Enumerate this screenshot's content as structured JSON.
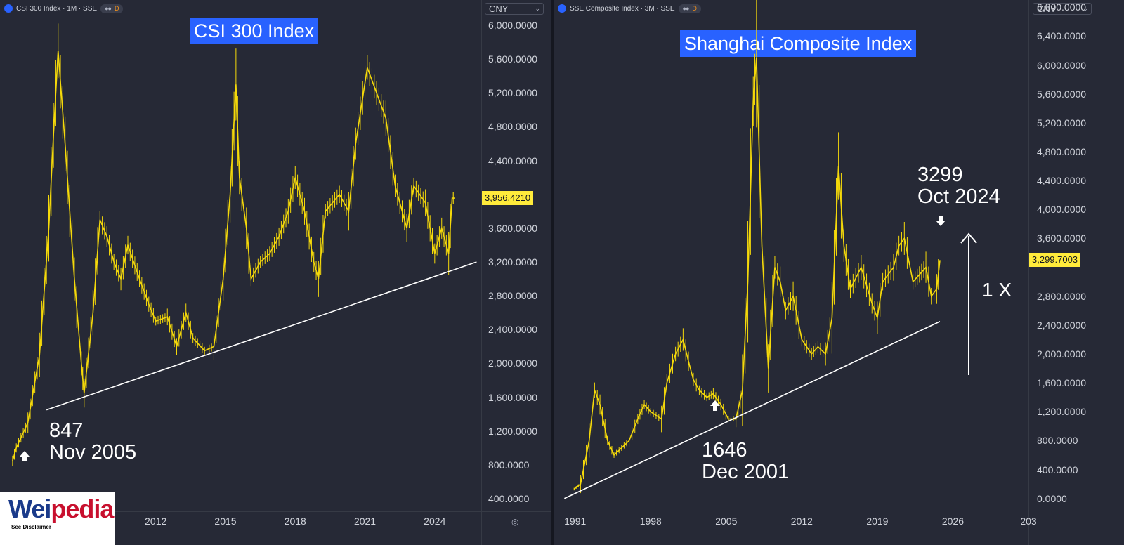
{
  "left": {
    "header": {
      "symbol": "CSI 300 Index · 1M · SSE",
      "flag": "D"
    },
    "currency": "CNY",
    "title": "CSI 300 Index",
    "last_price_label": "3,956.4210",
    "y_ticks": [
      "6,000.0000",
      "5,600.0000",
      "5,200.0000",
      "4,800.0000",
      "4,400.0000",
      "3,600.0000",
      "3,200.0000",
      "2,800.0000",
      "2,400.0000",
      "2,000.0000",
      "1,600.0000",
      "1,200.0000",
      "800.0000",
      "400.0000"
    ],
    "x_ticks": [
      "2012",
      "2015",
      "2018",
      "2021",
      "2024"
    ],
    "annotation": {
      "value": "847",
      "date": "Nov 2005"
    },
    "settings_icon": "gear-icon",
    "colors": {
      "candle": "#f5d90a",
      "trendline": "#ffffff",
      "title_bg": "#2962ff",
      "price_tag": "#ffeb3b"
    }
  },
  "right": {
    "header": {
      "symbol": "SSE Composite Index · 3M · SSE",
      "flag": "D"
    },
    "currency": "CNY",
    "title": "Shanghai Composite Index",
    "last_price_label": "3,299.7003",
    "y_ticks": [
      "6,800.0000",
      "6,400.0000",
      "6,000.0000",
      "5,600.0000",
      "5,200.0000",
      "4,800.0000",
      "4,400.0000",
      "4,000.0000",
      "3,600.0000",
      "2,800.0000",
      "2,400.0000",
      "2,000.0000",
      "1,600.0000",
      "1,200.0000",
      "800.0000",
      "400.0000",
      "0.0000"
    ],
    "x_ticks": [
      "1991",
      "1998",
      "2005",
      "2012",
      "2019",
      "2026",
      "203"
    ],
    "annotation_low": {
      "value": "1646",
      "date": "Dec 2001"
    },
    "annotation_high": {
      "value": "3299",
      "date": "Oct 2024"
    },
    "arrow_label": "1 X"
  },
  "logo": {
    "word_a": "Wei",
    "word_b": "pedia",
    "sub": "See Disclaimer"
  },
  "chart_data": [
    {
      "type": "line",
      "title": "CSI 300 Index",
      "xlabel": "",
      "ylabel": "",
      "ylim": [
        250,
        6300
      ],
      "xlim": [
        2005.3,
        2026.0
      ],
      "series": [
        {
          "x": [
            2005.84,
            2006.0,
            2006.5,
            2007.0,
            2007.4,
            2007.6,
            2007.8,
            2008.1,
            2008.5,
            2008.8,
            2008.92,
            2009.3,
            2009.6,
            2009.9,
            2010.2,
            2010.5,
            2010.8,
            2011.3,
            2011.7,
            2012.0,
            2012.5,
            2012.9,
            2013.3,
            2013.6,
            2014.1,
            2014.5,
            2014.9,
            2015.2,
            2015.45,
            2015.6,
            2015.9,
            2016.1,
            2016.5,
            2016.9,
            2017.3,
            2017.7,
            2018.0,
            2018.4,
            2018.8,
            2019.0,
            2019.3,
            2019.9,
            2020.3,
            2020.6,
            2021.1,
            2021.5,
            2021.9,
            2022.3,
            2022.8,
            2023.1,
            2023.6,
            2024.0,
            2024.3,
            2024.6,
            2024.75,
            2024.85
          ],
          "y": [
            847,
            1000,
            1300,
            2100,
            3600,
            4700,
            5700,
            4600,
            3000,
            2000,
            1650,
            2600,
            3700,
            3500,
            3200,
            3000,
            3400,
            3000,
            2700,
            2500,
            2550,
            2200,
            2600,
            2300,
            2150,
            2200,
            3000,
            4000,
            5300,
            4200,
            3600,
            3000,
            3200,
            3300,
            3500,
            3800,
            4200,
            3800,
            3200,
            3000,
            3800,
            4000,
            3800,
            4600,
            5500,
            5200,
            4900,
            4100,
            3600,
            4100,
            3900,
            3300,
            3600,
            3300,
            3956,
            3956
          ]
        }
      ],
      "trendline": {
        "x": [
          2007.3,
          2025.8
        ],
        "y": [
          1450,
          3200
        ]
      },
      "annotations": [
        {
          "text": "847 Nov 2005",
          "x": 2005.84,
          "y": 847
        }
      ],
      "last_price": 3956.421
    },
    {
      "type": "line",
      "title": "Shanghai Composite Index",
      "xlabel": "",
      "ylabel": "",
      "ylim": [
        -100,
        6900
      ],
      "xlim": [
        1989.0,
        2033.0
      ],
      "series": [
        {
          "x": [
            1990.9,
            1991.5,
            1992.3,
            1992.8,
            1993.3,
            1994.0,
            1994.6,
            1995.3,
            1996.0,
            1996.8,
            1997.4,
            1998.0,
            1999.0,
            1999.5,
            2000.3,
            2001.0,
            2001.5,
            2001.95,
            2002.5,
            2003.2,
            2003.8,
            2004.5,
            2005.2,
            2005.9,
            2006.5,
            2007.0,
            2007.5,
            2007.8,
            2008.3,
            2008.9,
            2009.5,
            2010.0,
            2010.5,
            2011.2,
            2012.0,
            2012.9,
            2013.5,
            2014.2,
            2014.8,
            2015.4,
            2015.9,
            2016.5,
            2017.5,
            2018.5,
            2019.0,
            2019.5,
            2020.5,
            2021.0,
            2021.5,
            2022.3,
            2022.9,
            2023.5,
            2024.0,
            2024.5,
            2024.8
          ],
          "y": [
            130,
            200,
            800,
            1500,
            1300,
            800,
            600,
            700,
            800,
            1100,
            1300,
            1200,
            1100,
            1600,
            2000,
            2200,
            1900,
            1646,
            1500,
            1400,
            1450,
            1300,
            1100,
            1100,
            1500,
            3000,
            5500,
            6100,
            3500,
            1800,
            3200,
            3000,
            2600,
            2800,
            2200,
            2000,
            2100,
            2000,
            2500,
            4600,
            3500,
            2900,
            3200,
            2700,
            2500,
            3000,
            3200,
            3500,
            3600,
            3000,
            3100,
            3200,
            2800,
            2900,
            3299
          ]
        }
      ],
      "trendline": {
        "x": [
          1990.0,
          2024.8
        ],
        "y": [
          0,
          2450
        ]
      },
      "annotations": [
        {
          "text": "1646 Dec 2001",
          "x": 2001.95,
          "y": 1646
        },
        {
          "text": "3299 Oct 2024",
          "x": 2024.8,
          "y": 3299
        },
        {
          "text": "1 X",
          "x": 2027.0,
          "y": 2800
        }
      ],
      "last_price": 3299.7003
    }
  ]
}
